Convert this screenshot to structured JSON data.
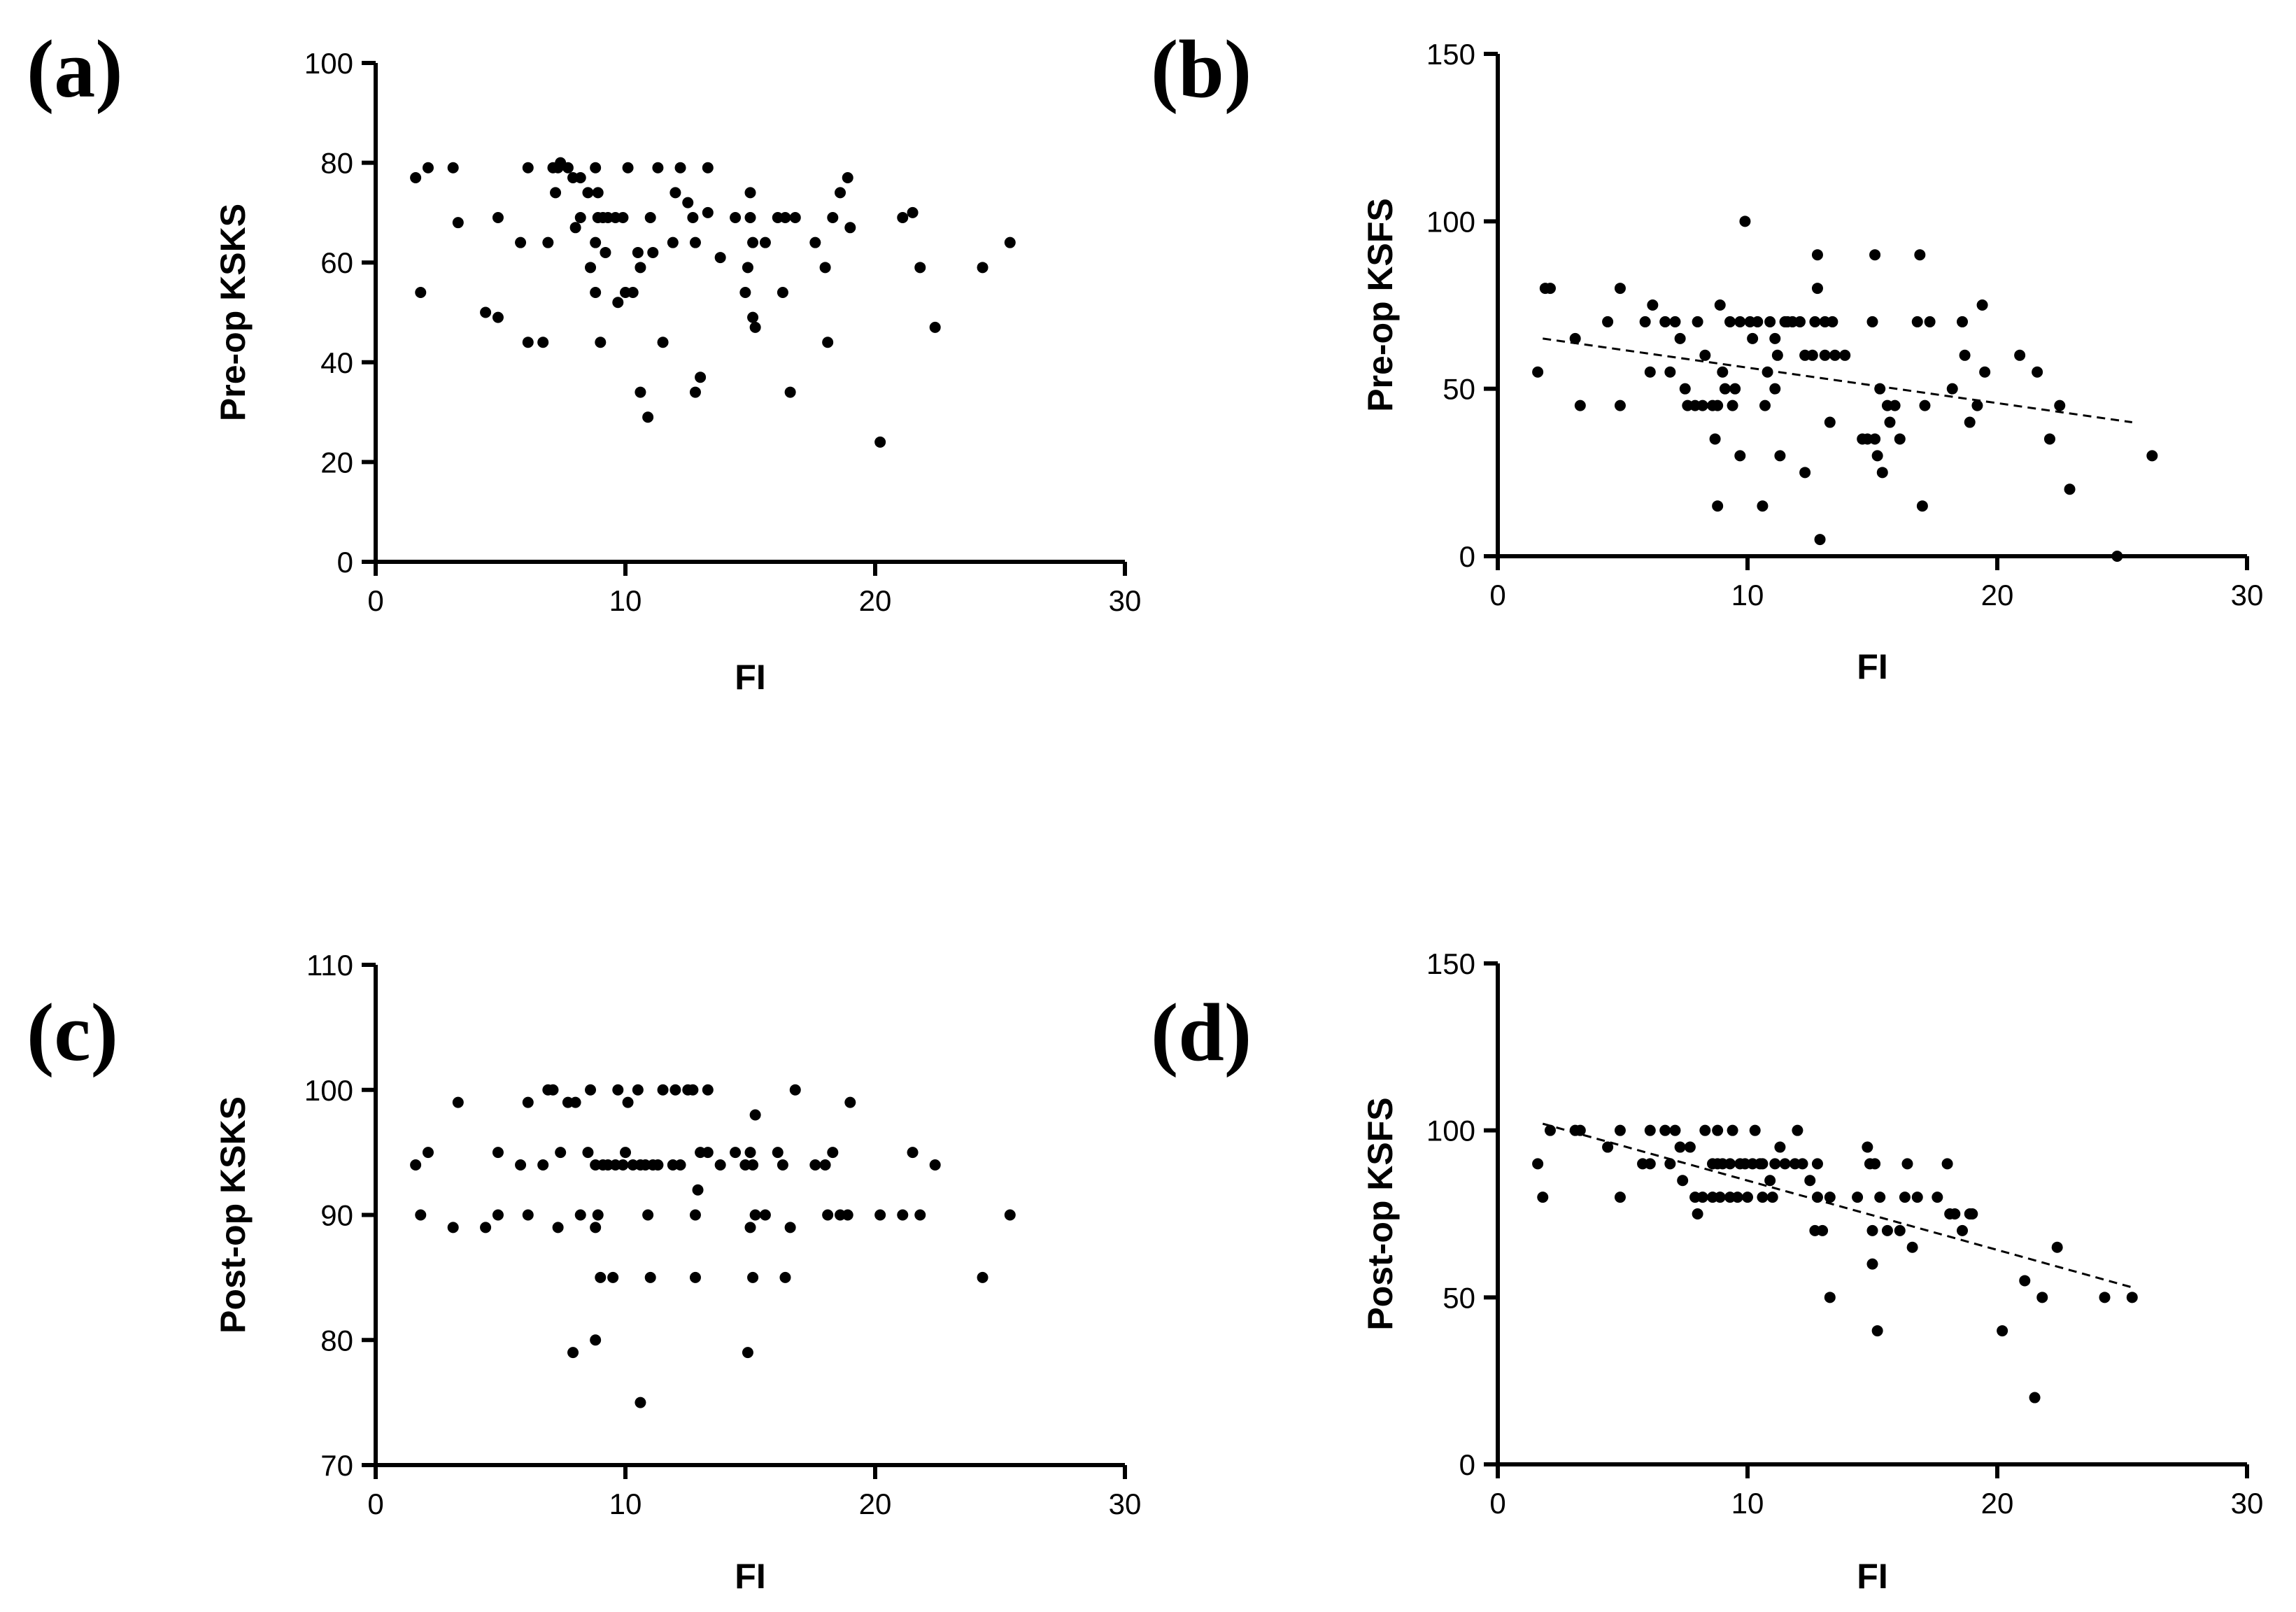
{
  "figure_title": "",
  "chart_data": [
    {
      "panel": "(a)",
      "type": "scatter",
      "xlabel": "FI",
      "ylabel": "Pre-op KSKS",
      "xlim": [
        0,
        30
      ],
      "ylim": [
        0,
        100
      ],
      "xticks": [
        0,
        10,
        20,
        30
      ],
      "yticks": [
        0,
        20,
        40,
        60,
        80,
        100
      ],
      "trendline": null,
      "points": [
        [
          1.6,
          77
        ],
        [
          1.8,
          54
        ],
        [
          2.1,
          79
        ],
        [
          3.1,
          79
        ],
        [
          3.3,
          68
        ],
        [
          4.4,
          50
        ],
        [
          4.9,
          49
        ],
        [
          4.9,
          69
        ],
        [
          5.8,
          64
        ],
        [
          6.1,
          44
        ],
        [
          6.1,
          79
        ],
        [
          6.7,
          44
        ],
        [
          6.9,
          64
        ],
        [
          7.1,
          79
        ],
        [
          7.2,
          74
        ],
        [
          7.3,
          79
        ],
        [
          7.4,
          80
        ],
        [
          7.7,
          79
        ],
        [
          7.9,
          77
        ],
        [
          8.0,
          67
        ],
        [
          8.2,
          77
        ],
        [
          8.2,
          69
        ],
        [
          8.5,
          74
        ],
        [
          8.6,
          59
        ],
        [
          8.8,
          64
        ],
        [
          8.8,
          54
        ],
        [
          8.8,
          79
        ],
        [
          8.9,
          74
        ],
        [
          8.9,
          69
        ],
        [
          9.0,
          44
        ],
        [
          9.1,
          69
        ],
        [
          9.2,
          62
        ],
        [
          9.3,
          69
        ],
        [
          9.6,
          69
        ],
        [
          9.7,
          52
        ],
        [
          9.9,
          69
        ],
        [
          10.0,
          54
        ],
        [
          10.1,
          79
        ],
        [
          10.3,
          54
        ],
        [
          10.5,
          62
        ],
        [
          10.6,
          59
        ],
        [
          10.6,
          34
        ],
        [
          10.9,
          29
        ],
        [
          11.0,
          69
        ],
        [
          11.1,
          62
        ],
        [
          11.3,
          79
        ],
        [
          11.5,
          44
        ],
        [
          11.9,
          64
        ],
        [
          12.0,
          74
        ],
        [
          12.2,
          79
        ],
        [
          12.5,
          72
        ],
        [
          12.7,
          69
        ],
        [
          12.8,
          64
        ],
        [
          12.8,
          34
        ],
        [
          13.0,
          37
        ],
        [
          13.3,
          70
        ],
        [
          13.3,
          79
        ],
        [
          13.8,
          61
        ],
        [
          14.4,
          69
        ],
        [
          14.8,
          54
        ],
        [
          14.9,
          59
        ],
        [
          15.0,
          74
        ],
        [
          15.0,
          69
        ],
        [
          15.1,
          64
        ],
        [
          15.1,
          49
        ],
        [
          15.2,
          47
        ],
        [
          15.6,
          64
        ],
        [
          16.1,
          69
        ],
        [
          16.3,
          54
        ],
        [
          16.4,
          69
        ],
        [
          16.6,
          34
        ],
        [
          16.8,
          69
        ],
        [
          17.6,
          64
        ],
        [
          18.0,
          59
        ],
        [
          18.1,
          44
        ],
        [
          18.3,
          69
        ],
        [
          18.6,
          74
        ],
        [
          18.9,
          77
        ],
        [
          19.0,
          67
        ],
        [
          20.2,
          24
        ],
        [
          21.1,
          69
        ],
        [
          21.5,
          70
        ],
        [
          21.8,
          59
        ],
        [
          22.4,
          47
        ],
        [
          24.3,
          59
        ],
        [
          25.4,
          64
        ]
      ]
    },
    {
      "panel": "(b)",
      "type": "scatter",
      "xlabel": "FI",
      "ylabel": "Pre-op KSFS",
      "xlim": [
        0,
        30
      ],
      "ylim": [
        0,
        150
      ],
      "xticks": [
        0,
        10,
        20,
        30
      ],
      "yticks": [
        0,
        50,
        100,
        150
      ],
      "trendline": {
        "style": "dashed",
        "x": [
          1.8,
          25.4
        ],
        "y": [
          65,
          40
        ]
      },
      "points": [
        [
          1.6,
          55
        ],
        [
          1.9,
          80
        ],
        [
          2.1,
          80
        ],
        [
          3.1,
          65
        ],
        [
          3.3,
          45
        ],
        [
          4.4,
          70
        ],
        [
          4.9,
          80
        ],
        [
          4.9,
          45
        ],
        [
          5.9,
          70
        ],
        [
          6.1,
          55
        ],
        [
          6.2,
          75
        ],
        [
          6.7,
          70
        ],
        [
          6.9,
          55
        ],
        [
          7.1,
          70
        ],
        [
          7.3,
          65
        ],
        [
          7.5,
          50
        ],
        [
          7.6,
          45
        ],
        [
          7.9,
          45
        ],
        [
          8.0,
          70
        ],
        [
          8.2,
          45
        ],
        [
          8.3,
          60
        ],
        [
          8.6,
          45
        ],
        [
          8.7,
          35
        ],
        [
          8.8,
          45
        ],
        [
          8.8,
          15
        ],
        [
          8.9,
          75
        ],
        [
          9.0,
          55
        ],
        [
          9.1,
          50
        ],
        [
          9.3,
          70
        ],
        [
          9.4,
          45
        ],
        [
          9.5,
          50
        ],
        [
          9.7,
          30
        ],
        [
          9.7,
          70
        ],
        [
          9.9,
          100
        ],
        [
          10.1,
          70
        ],
        [
          10.2,
          65
        ],
        [
          10.4,
          70
        ],
        [
          10.6,
          15
        ],
        [
          10.7,
          45
        ],
        [
          10.8,
          55
        ],
        [
          10.9,
          70
        ],
        [
          11.1,
          65
        ],
        [
          11.1,
          50
        ],
        [
          11.2,
          60
        ],
        [
          11.3,
          30
        ],
        [
          11.5,
          70
        ],
        [
          11.6,
          70
        ],
        [
          11.8,
          70
        ],
        [
          12.1,
          70
        ],
        [
          12.3,
          25
        ],
        [
          12.3,
          60
        ],
        [
          12.6,
          60
        ],
        [
          12.7,
          70
        ],
        [
          12.8,
          90
        ],
        [
          12.8,
          80
        ],
        [
          12.9,
          5
        ],
        [
          13.1,
          60
        ],
        [
          13.1,
          70
        ],
        [
          13.3,
          40
        ],
        [
          13.4,
          70
        ],
        [
          13.5,
          60
        ],
        [
          13.9,
          60
        ],
        [
          14.6,
          35
        ],
        [
          14.8,
          35
        ],
        [
          15.0,
          70
        ],
        [
          15.1,
          90
        ],
        [
          15.1,
          35
        ],
        [
          15.2,
          30
        ],
        [
          15.3,
          50
        ],
        [
          15.4,
          25
        ],
        [
          15.6,
          45
        ],
        [
          15.7,
          40
        ],
        [
          15.9,
          45
        ],
        [
          16.1,
          35
        ],
        [
          16.8,
          70
        ],
        [
          16.9,
          90
        ],
        [
          17.0,
          15
        ],
        [
          17.1,
          45
        ],
        [
          17.3,
          70
        ],
        [
          18.2,
          50
        ],
        [
          18.6,
          70
        ],
        [
          18.7,
          60
        ],
        [
          18.9,
          40
        ],
        [
          19.2,
          45
        ],
        [
          19.4,
          75
        ],
        [
          19.5,
          55
        ],
        [
          20.9,
          60
        ],
        [
          21.6,
          55
        ],
        [
          22.1,
          35
        ],
        [
          22.5,
          45
        ],
        [
          22.9,
          20
        ],
        [
          24.8,
          0
        ],
        [
          26.2,
          30
        ]
      ]
    },
    {
      "panel": "(c)",
      "type": "scatter",
      "xlabel": "FI",
      "ylabel": "Post-op KSKS",
      "xlim": [
        0,
        30
      ],
      "ylim": [
        70,
        110
      ],
      "xticks": [
        0,
        10,
        20,
        30
      ],
      "yticks": [
        70,
        80,
        90,
        100,
        110
      ],
      "trendline": null,
      "points": [
        [
          1.6,
          94
        ],
        [
          1.8,
          90
        ],
        [
          2.1,
          95
        ],
        [
          3.1,
          89
        ],
        [
          3.3,
          99
        ],
        [
          4.4,
          89
        ],
        [
          4.9,
          90
        ],
        [
          4.9,
          95
        ],
        [
          5.8,
          94
        ],
        [
          6.1,
          90
        ],
        [
          6.1,
          99
        ],
        [
          6.7,
          94
        ],
        [
          6.9,
          100
        ],
        [
          7.1,
          100
        ],
        [
          7.3,
          89
        ],
        [
          7.4,
          95
        ],
        [
          7.7,
          99
        ],
        [
          7.9,
          79
        ],
        [
          8.0,
          99
        ],
        [
          8.2,
          90
        ],
        [
          8.5,
          95
        ],
        [
          8.6,
          100
        ],
        [
          8.8,
          94
        ],
        [
          8.8,
          89
        ],
        [
          8.8,
          80
        ],
        [
          8.9,
          90
        ],
        [
          9.0,
          85
        ],
        [
          9.1,
          94
        ],
        [
          9.3,
          94
        ],
        [
          9.5,
          85
        ],
        [
          9.6,
          94
        ],
        [
          9.7,
          100
        ],
        [
          9.9,
          94
        ],
        [
          10.0,
          95
        ],
        [
          10.1,
          99
        ],
        [
          10.3,
          94
        ],
        [
          10.5,
          100
        ],
        [
          10.6,
          94
        ],
        [
          10.6,
          75
        ],
        [
          10.8,
          94
        ],
        [
          10.9,
          90
        ],
        [
          11.0,
          85
        ],
        [
          11.1,
          94
        ],
        [
          11.3,
          94
        ],
        [
          11.5,
          100
        ],
        [
          11.9,
          94
        ],
        [
          12.0,
          100
        ],
        [
          12.2,
          94
        ],
        [
          12.5,
          100
        ],
        [
          12.7,
          100
        ],
        [
          12.8,
          90
        ],
        [
          12.8,
          85
        ],
        [
          12.9,
          92
        ],
        [
          13.0,
          95
        ],
        [
          13.3,
          95
        ],
        [
          13.3,
          100
        ],
        [
          13.8,
          94
        ],
        [
          14.4,
          95
        ],
        [
          14.8,
          94
        ],
        [
          14.9,
          79
        ],
        [
          15.0,
          95
        ],
        [
          15.0,
          89
        ],
        [
          15.1,
          85
        ],
        [
          15.1,
          94
        ],
        [
          15.2,
          98
        ],
        [
          15.2,
          90
        ],
        [
          15.6,
          90
        ],
        [
          16.1,
          95
        ],
        [
          16.3,
          94
        ],
        [
          16.4,
          85
        ],
        [
          16.6,
          89
        ],
        [
          16.8,
          100
        ],
        [
          17.6,
          94
        ],
        [
          18.0,
          94
        ],
        [
          18.1,
          90
        ],
        [
          18.3,
          95
        ],
        [
          18.6,
          90
        ],
        [
          18.9,
          90
        ],
        [
          19.0,
          99
        ],
        [
          20.2,
          90
        ],
        [
          21.1,
          90
        ],
        [
          21.5,
          95
        ],
        [
          21.8,
          90
        ],
        [
          22.4,
          94
        ],
        [
          24.3,
          85
        ],
        [
          25.4,
          90
        ]
      ]
    },
    {
      "panel": "(d)",
      "type": "scatter",
      "xlabel": "FI",
      "ylabel": "Post-op KSFS",
      "xlim": [
        0,
        30
      ],
      "ylim": [
        0,
        150
      ],
      "xticks": [
        0,
        10,
        20,
        30
      ],
      "yticks": [
        0,
        50,
        100,
        150
      ],
      "trendline": {
        "style": "dashed",
        "x": [
          1.8,
          25.4
        ],
        "y": [
          102,
          53
        ]
      },
      "points": [
        [
          1.6,
          90
        ],
        [
          1.8,
          80
        ],
        [
          2.1,
          100
        ],
        [
          3.1,
          100
        ],
        [
          3.3,
          100
        ],
        [
          4.4,
          95
        ],
        [
          4.9,
          80
        ],
        [
          4.9,
          100
        ],
        [
          5.8,
          90
        ],
        [
          6.1,
          90
        ],
        [
          6.1,
          100
        ],
        [
          6.7,
          100
        ],
        [
          6.9,
          90
        ],
        [
          7.1,
          100
        ],
        [
          7.3,
          95
        ],
        [
          7.4,
          85
        ],
        [
          7.7,
          95
        ],
        [
          7.9,
          80
        ],
        [
          8.0,
          75
        ],
        [
          8.2,
          80
        ],
        [
          8.3,
          100
        ],
        [
          8.6,
          90
        ],
        [
          8.6,
          80
        ],
        [
          8.8,
          90
        ],
        [
          8.8,
          100
        ],
        [
          8.9,
          80
        ],
        [
          9.0,
          90
        ],
        [
          9.3,
          90
        ],
        [
          9.3,
          80
        ],
        [
          9.4,
          100
        ],
        [
          9.6,
          80
        ],
        [
          9.7,
          90
        ],
        [
          9.9,
          90
        ],
        [
          10.0,
          80
        ],
        [
          10.2,
          90
        ],
        [
          10.3,
          100
        ],
        [
          10.5,
          90
        ],
        [
          10.6,
          80
        ],
        [
          10.6,
          90
        ],
        [
          10.9,
          85
        ],
        [
          11.0,
          80
        ],
        [
          11.1,
          90
        ],
        [
          11.3,
          95
        ],
        [
          11.5,
          90
        ],
        [
          11.9,
          90
        ],
        [
          12.0,
          100
        ],
        [
          12.2,
          90
        ],
        [
          12.5,
          85
        ],
        [
          12.7,
          70
        ],
        [
          12.8,
          80
        ],
        [
          12.8,
          90
        ],
        [
          13.0,
          70
        ],
        [
          13.3,
          80
        ],
        [
          13.3,
          50
        ],
        [
          14.4,
          80
        ],
        [
          14.8,
          95
        ],
        [
          14.9,
          90
        ],
        [
          15.0,
          70
        ],
        [
          15.0,
          60
        ],
        [
          15.1,
          90
        ],
        [
          15.2,
          40
        ],
        [
          15.3,
          80
        ],
        [
          15.6,
          70
        ],
        [
          16.1,
          70
        ],
        [
          16.3,
          80
        ],
        [
          16.4,
          90
        ],
        [
          16.6,
          65
        ],
        [
          16.8,
          80
        ],
        [
          17.6,
          80
        ],
        [
          18.0,
          90
        ],
        [
          18.1,
          75
        ],
        [
          18.3,
          75
        ],
        [
          18.6,
          70
        ],
        [
          18.9,
          75
        ],
        [
          19.0,
          75
        ],
        [
          20.2,
          40
        ],
        [
          21.1,
          55
        ],
        [
          21.5,
          20
        ],
        [
          21.8,
          50
        ],
        [
          22.4,
          65
        ],
        [
          24.3,
          50
        ],
        [
          25.4,
          50
        ]
      ]
    }
  ]
}
